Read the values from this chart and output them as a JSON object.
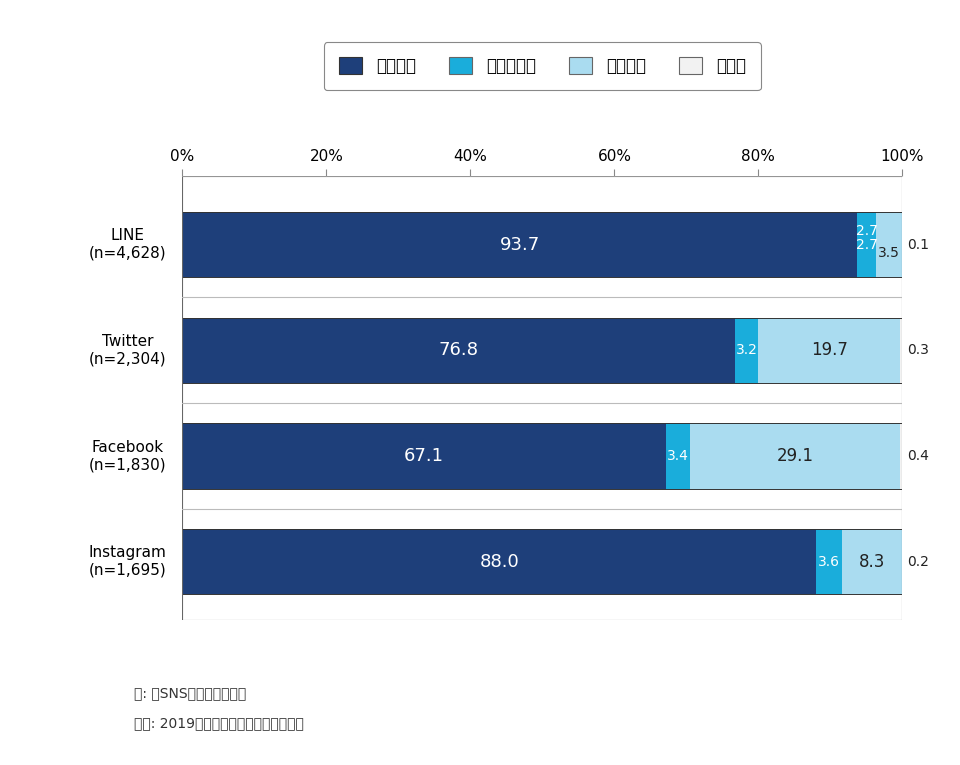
{
  "categories": [
    "LINE\n(n=4,628)",
    "Twitter\n(n=2,304)",
    "Facebook\n(n=1,830)",
    "Instagram\n(n=1,695)"
  ],
  "series": {
    "ケータイ": [
      93.7,
      76.8,
      67.1,
      88.0
    ],
    "タブレット": [
      2.7,
      3.2,
      3.4,
      3.6
    ],
    "パソコン": [
      3.5,
      19.7,
      29.1,
      8.3
    ],
    "その他": [
      0.1,
      0.3,
      0.4,
      0.2
    ]
  },
  "colors": {
    "ケータイ": "#1e3f7a",
    "タブレット": "#1aaddb",
    "パソコン": "#aadcf0",
    "その他": "#f2f2f2"
  },
  "xlim": [
    0,
    100
  ],
  "xticks": [
    0,
    20,
    40,
    60,
    80,
    100
  ],
  "xticklabels": [
    "0%",
    "20%",
    "40%",
    "60%",
    "80%",
    "100%"
  ],
  "note1": "注: 各SNS利用者が回答。",
  "note2": "出所: 2019年一般向けモバイル動向調査",
  "legend_order": [
    "ケータイ",
    "タブレット",
    "パソコン",
    "その他"
  ],
  "bar_height": 0.62,
  "background_color": "#ffffff"
}
